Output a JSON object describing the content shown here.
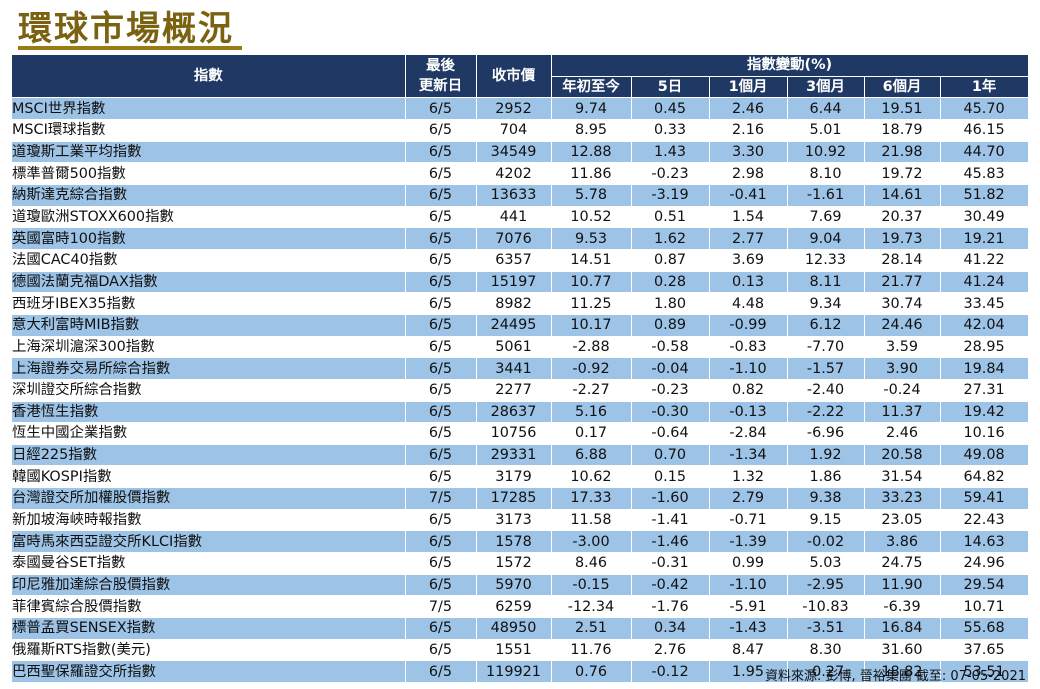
{
  "title": "環球市場概況",
  "header": {
    "index": "指數",
    "last_update": "最後\n更新日",
    "last_update_l1": "最後",
    "last_update_l2": "更新日",
    "close_price": "收市價",
    "change_group": "指數變動(%)",
    "periods": [
      "年初至今",
      "5日",
      "1個月",
      "3個月",
      "6個月",
      "1年"
    ]
  },
  "rows": [
    {
      "name": "MSCI世界指數",
      "date": "6/5",
      "close": "2952",
      "ytd": "9.74",
      "d5": "0.45",
      "m1": "2.46",
      "m3": "6.44",
      "m6": "19.51",
      "y1": "45.70"
    },
    {
      "name": "MSCI環球指數",
      "date": "6/5",
      "close": "704",
      "ytd": "8.95",
      "d5": "0.33",
      "m1": "2.16",
      "m3": "5.01",
      "m6": "18.79",
      "y1": "46.15"
    },
    {
      "name": "道瓊斯工業平均指數",
      "date": "6/5",
      "close": "34549",
      "ytd": "12.88",
      "d5": "1.43",
      "m1": "3.30",
      "m3": "10.92",
      "m6": "21.98",
      "y1": "44.70"
    },
    {
      "name": "標準普爾500指數",
      "date": "6/5",
      "close": "4202",
      "ytd": "11.86",
      "d5": "-0.23",
      "m1": "2.98",
      "m3": "8.10",
      "m6": "19.72",
      "y1": "45.83"
    },
    {
      "name": "納斯達克綜合指數",
      "date": "6/5",
      "close": "13633",
      "ytd": "5.78",
      "d5": "-3.19",
      "m1": "-0.41",
      "m3": "-1.61",
      "m6": "14.61",
      "y1": "51.82"
    },
    {
      "name": "道瓊歐洲STOXX600指數",
      "date": "6/5",
      "close": "441",
      "ytd": "10.52",
      "d5": "0.51",
      "m1": "1.54",
      "m3": "7.69",
      "m6": "20.37",
      "y1": "30.49"
    },
    {
      "name": "英國富時100指數",
      "date": "6/5",
      "close": "7076",
      "ytd": "9.53",
      "d5": "1.62",
      "m1": "2.77",
      "m3": "9.04",
      "m6": "19.73",
      "y1": "19.21"
    },
    {
      "name": "法國CAC40指數",
      "date": "6/5",
      "close": "6357",
      "ytd": "14.51",
      "d5": "0.87",
      "m1": "3.69",
      "m3": "12.33",
      "m6": "28.14",
      "y1": "41.22"
    },
    {
      "name": "德國法蘭克福DAX指數",
      "date": "6/5",
      "close": "15197",
      "ytd": "10.77",
      "d5": "0.28",
      "m1": "0.13",
      "m3": "8.11",
      "m6": "21.77",
      "y1": "41.24"
    },
    {
      "name": "西班牙IBEX35指數",
      "date": "6/5",
      "close": "8982",
      "ytd": "11.25",
      "d5": "1.80",
      "m1": "4.48",
      "m3": "9.34",
      "m6": "30.74",
      "y1": "33.45"
    },
    {
      "name": "意大利富時MIB指數",
      "date": "6/5",
      "close": "24495",
      "ytd": "10.17",
      "d5": "0.89",
      "m1": "-0.99",
      "m3": "6.12",
      "m6": "24.46",
      "y1": "42.04"
    },
    {
      "name": "上海深圳滬深300指數",
      "date": "6/5",
      "close": "5061",
      "ytd": "-2.88",
      "d5": "-0.58",
      "m1": "-0.83",
      "m3": "-7.70",
      "m6": "3.59",
      "y1": "28.95"
    },
    {
      "name": "上海證券交易所綜合指數",
      "date": "6/5",
      "close": "3441",
      "ytd": "-0.92",
      "d5": "-0.04",
      "m1": "-1.10",
      "m3": "-1.57",
      "m6": "3.90",
      "y1": "19.84"
    },
    {
      "name": "深圳證交所綜合指數",
      "date": "6/5",
      "close": "2277",
      "ytd": "-2.27",
      "d5": "-0.23",
      "m1": "0.82",
      "m3": "-2.40",
      "m6": "-0.24",
      "y1": "27.31"
    },
    {
      "name": "香港恆生指數",
      "date": "6/5",
      "close": "28637",
      "ytd": "5.16",
      "d5": "-0.30",
      "m1": "-0.13",
      "m3": "-2.22",
      "m6": "11.37",
      "y1": "19.42"
    },
    {
      "name": "恆生中國企業指數",
      "date": "6/5",
      "close": "10756",
      "ytd": "0.17",
      "d5": "-0.64",
      "m1": "-2.84",
      "m3": "-6.96",
      "m6": "2.46",
      "y1": "10.16"
    },
    {
      "name": "日經225指數",
      "date": "6/5",
      "close": "29331",
      "ytd": "6.88",
      "d5": "0.70",
      "m1": "-1.34",
      "m3": "1.92",
      "m6": "20.58",
      "y1": "49.08"
    },
    {
      "name": "韓國KOSPI指數",
      "date": "6/5",
      "close": "3179",
      "ytd": "10.62",
      "d5": "0.15",
      "m1": "1.32",
      "m3": "1.86",
      "m6": "31.54",
      "y1": "64.82"
    },
    {
      "name": "台灣證交所加權股價指數",
      "date": "7/5",
      "close": "17285",
      "ytd": "17.33",
      "d5": "-1.60",
      "m1": "2.79",
      "m3": "9.38",
      "m6": "33.23",
      "y1": "59.41"
    },
    {
      "name": "新加坡海峽時報指數",
      "date": "6/5",
      "close": "3173",
      "ytd": "11.58",
      "d5": "-1.41",
      "m1": "-0.71",
      "m3": "9.15",
      "m6": "23.05",
      "y1": "22.43"
    },
    {
      "name": "富時馬來西亞證交所KLCI指數",
      "date": "6/5",
      "close": "1578",
      "ytd": "-3.00",
      "d5": "-1.46",
      "m1": "-1.39",
      "m3": "-0.02",
      "m6": "3.86",
      "y1": "14.63"
    },
    {
      "name": "泰國曼谷SET指數",
      "date": "6/5",
      "close": "1572",
      "ytd": "8.46",
      "d5": "-0.31",
      "m1": "0.99",
      "m3": "5.03",
      "m6": "24.75",
      "y1": "24.96"
    },
    {
      "name": "印尼雅加達綜合股價指數",
      "date": "6/5",
      "close": "5970",
      "ytd": "-0.15",
      "d5": "-0.42",
      "m1": "-1.10",
      "m3": "-2.95",
      "m6": "11.90",
      "y1": "29.54"
    },
    {
      "name": "菲律賓綜合股價指數",
      "date": "7/5",
      "close": "6259",
      "ytd": "-12.34",
      "d5": "-1.76",
      "m1": "-5.91",
      "m3": "-10.83",
      "m6": "-6.39",
      "y1": "10.71"
    },
    {
      "name": "標普孟買SENSEX指數",
      "date": "6/5",
      "close": "48950",
      "ytd": "2.51",
      "d5": "0.34",
      "m1": "-1.43",
      "m3": "-3.51",
      "m6": "16.84",
      "y1": "55.68"
    },
    {
      "name": "俄羅斯RTS指數(美元)",
      "date": "6/5",
      "close": "1551",
      "ytd": "11.76",
      "d5": "2.76",
      "m1": "8.47",
      "m3": "8.30",
      "m6": "31.60",
      "y1": "37.65"
    },
    {
      "name": "巴西聖保羅證交所指數",
      "date": "6/5",
      "close": "119921",
      "ytd": "0.76",
      "d5": "-0.12",
      "m1": "1.95",
      "m3": "-0.27",
      "m6": "18.82",
      "y1": "53.51"
    }
  ],
  "source": "資料來源: 彭博, 晉裕集團 截至: 07-05-2021",
  "colors": {
    "header_bg": "#1f3864",
    "stripe": "#9dc3e6",
    "title": "#7a6210"
  }
}
